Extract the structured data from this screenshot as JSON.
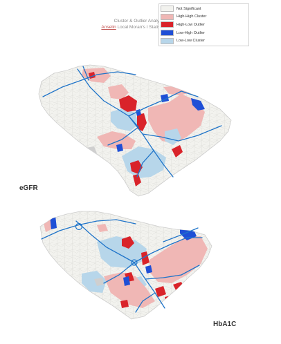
{
  "title_line1": "Cluster & Outlier Analysis",
  "title_line2_prefix": "Anselin",
  "title_line2_rest": " Local Moran's I Statistic",
  "legend": [
    {
      "label": "Not Significant",
      "color": "#f2f2ee"
    },
    {
      "label": "High-High Cluster",
      "color": "#f0b7b5"
    },
    {
      "label": "High-Low Outlier",
      "color": "#d9232a"
    },
    {
      "label": "Low-High Outlier",
      "color": "#1f4fd6"
    },
    {
      "label": "Low-Low Cluster",
      "color": "#b7d6ea"
    }
  ],
  "maps": [
    {
      "label": "eGFR"
    },
    {
      "label": "HbA1C"
    }
  ],
  "colors": {
    "road": "#1f74c9",
    "border": "#cccccc",
    "missing": "#cfcfcf"
  }
}
